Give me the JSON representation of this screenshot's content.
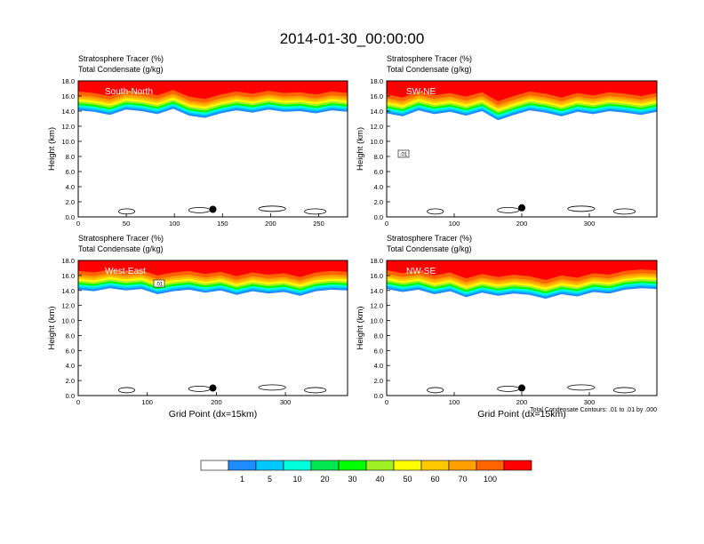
{
  "figure": {
    "title": "2014-01-30_00:00:00",
    "label_line1": "Stratosphere Tracer   (%)",
    "label_line2": "Total Condensate   (g/kg)",
    "contour_note": "Total Condensate Contours: .01 to .01 by .000",
    "xlabel": "Grid Point (dx=15km)",
    "ylabel": "Height (km)"
  },
  "colorbar": {
    "colors": [
      "#ffffff",
      "#1e8cff",
      "#00c8ff",
      "#00ffdc",
      "#00e650",
      "#00ff00",
      "#a0f028",
      "#ffff00",
      "#ffc800",
      "#ffa000",
      "#ff6400",
      "#ff0000"
    ],
    "labels": [
      "1",
      "5",
      "10",
      "20",
      "30",
      "40",
      "50",
      "60",
      "70",
      "100"
    ]
  },
  "chart_data": [
    {
      "type": "heatmap",
      "panel": "South-North",
      "xlim": [
        0,
        280
      ],
      "ylim": [
        0,
        18
      ],
      "x_ticks": [
        0,
        50,
        100,
        150,
        200,
        250
      ],
      "y_ticks": [
        "0.0",
        "2.0",
        "4.0",
        "6.0",
        "8.0",
        "10.0",
        "12.0",
        "14.0",
        "16.0",
        "18.0"
      ],
      "tracer_top_km": 18.0,
      "tropopause_km": [
        14.8,
        14.6,
        14.2,
        14.9,
        14.7,
        14.3,
        15.0,
        14.1,
        13.8,
        14.4,
        14.8,
        14.5,
        14.9,
        14.6,
        14.7,
        14.4,
        14.8,
        14.6
      ],
      "contour_label": "",
      "marker": {
        "x": 140,
        "y_km": 1.0
      }
    },
    {
      "type": "heatmap",
      "panel": "SW-NE",
      "xlim": [
        0,
        400
      ],
      "ylim": [
        0,
        18
      ],
      "x_ticks": [
        0,
        100,
        200,
        300
      ],
      "y_ticks": [
        "0.0",
        "2.0",
        "4.0",
        "6.0",
        "8.0",
        "10.0",
        "12.0",
        "14.0",
        "16.0",
        "18.0"
      ],
      "tracer_top_km": 18.0,
      "tropopause_km": [
        14.4,
        14.0,
        14.8,
        14.3,
        14.6,
        14.1,
        14.7,
        13.5,
        14.2,
        14.8,
        14.5,
        14.0,
        14.6,
        14.3,
        14.7,
        14.5,
        14.2,
        14.6
      ],
      "contour_label": ".01",
      "marker": {
        "x": 200,
        "y_km": 1.2
      }
    },
    {
      "type": "heatmap",
      "panel": "West-East",
      "xlim": [
        0,
        390
      ],
      "ylim": [
        0,
        18
      ],
      "x_ticks": [
        0,
        100,
        200,
        300
      ],
      "y_ticks": [
        "0.0",
        "2.0",
        "4.0",
        "6.0",
        "8.0",
        "10.0",
        "12.0",
        "14.0",
        "16.0",
        "18.0"
      ],
      "tracer_top_km": 18.0,
      "tropopause_km": [
        14.8,
        14.6,
        15.0,
        14.7,
        14.9,
        14.2,
        14.6,
        14.8,
        14.4,
        14.7,
        14.1,
        14.6,
        14.3,
        14.5,
        14.0,
        14.6,
        14.8,
        14.7
      ],
      "contour_label": ".01",
      "marker": {
        "x": 195,
        "y_km": 1.0
      }
    },
    {
      "type": "heatmap",
      "panel": "NW-SE",
      "xlim": [
        0,
        400
      ],
      "ylim": [
        0,
        18
      ],
      "x_ticks": [
        0,
        100,
        200,
        300
      ],
      "y_ticks": [
        "0.0",
        "2.0",
        "4.0",
        "6.0",
        "8.0",
        "10.0",
        "12.0",
        "14.0",
        "16.0",
        "18.0"
      ],
      "tracer_top_km": 18.0,
      "tropopause_km": [
        14.9,
        14.5,
        14.8,
        14.2,
        14.6,
        13.8,
        14.4,
        14.0,
        14.3,
        14.1,
        13.6,
        14.2,
        13.9,
        14.5,
        14.3,
        14.8,
        15.0,
        14.9
      ],
      "contour_label": "",
      "marker": {
        "x": 200,
        "y_km": 1.0
      }
    }
  ]
}
